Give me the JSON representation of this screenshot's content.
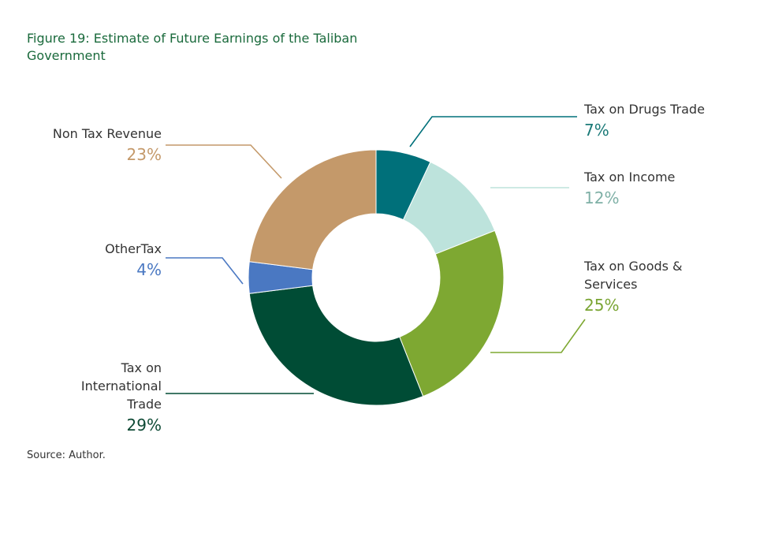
{
  "title": "Figure 19: Estimate of Future Earnings of the Taliban Government",
  "source": "Source: Author.",
  "chart_data": {
    "type": "pie",
    "donut": true,
    "title": "Figure 19: Estimate of Future Earnings of the Taliban Government",
    "slices": [
      {
        "name": "Tax on Drugs Trade",
        "lines": [
          "Tax on Drugs Trade"
        ],
        "value": 7,
        "label": "7%",
        "color": "#00707a",
        "pct_color": "#1b7a78"
      },
      {
        "name": "Tax on Income",
        "lines": [
          "Tax on Income"
        ],
        "value": 12,
        "label": "12%",
        "color": "#bde3dc",
        "pct_color": "#7fb0a6"
      },
      {
        "name": "Tax on Goods & Services",
        "lines": [
          "Tax on Goods &",
          "Services"
        ],
        "value": 25,
        "label": "25%",
        "color": "#7ea832",
        "pct_color": "#79a432"
      },
      {
        "name": "Tax on International Trade",
        "lines": [
          "Tax on",
          "International",
          "Trade"
        ],
        "value": 29,
        "label": "29%",
        "color": "#004c35",
        "pct_color": "#0e4a35"
      },
      {
        "name": "OtherTax",
        "lines": [
          "OtherTax"
        ],
        "value": 4,
        "label": "4%",
        "color": "#4a78c2",
        "pct_color": "#4a78c2"
      },
      {
        "name": "Non Tax Revenue",
        "lines": [
          "Non Tax Revenue"
        ],
        "value": 23,
        "label": "23%",
        "color": "#c4996a",
        "pct_color": "#c4996a"
      }
    ]
  }
}
